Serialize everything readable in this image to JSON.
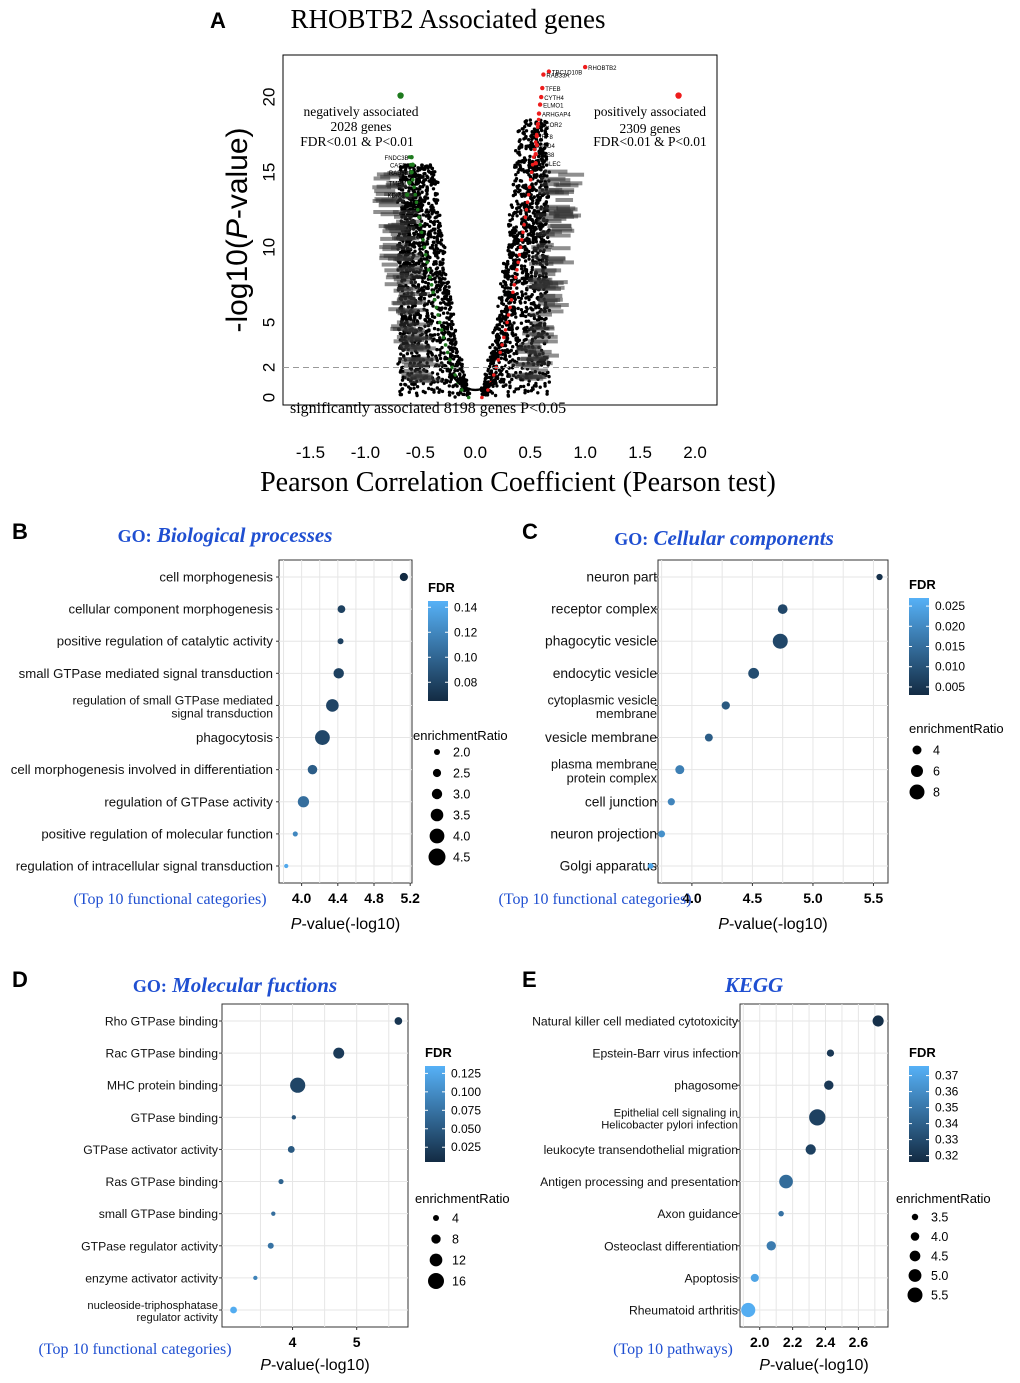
{
  "chart_data": [
    {
      "panel": "A",
      "type": "scatter",
      "title": "RHOBTB2 Associated genes",
      "xlabel": "Pearson Correlation Coefficient (Pearson test)",
      "ylabel_prefix": "-log10(",
      "ylabel_italic": "P",
      "ylabel_suffix": "-value)",
      "xlim": [
        -1.75,
        2.2
      ],
      "ylim": [
        -0.5,
        22.8
      ],
      "xticks": [
        -1.5,
        -1.0,
        -0.5,
        0.0,
        0.5,
        1.0,
        1.5,
        2.0
      ],
      "xtick_labels": [
        "-1.5",
        "-1.0",
        "-0.5",
        "0.0",
        "0.5",
        "1.0",
        "1.5",
        "2.0"
      ],
      "yticks": [
        0,
        2,
        5,
        10,
        15,
        20
      ],
      "ytick_labels": [
        "0",
        "2",
        "5",
        "10",
        "15",
        "20"
      ],
      "threshold_y": 2,
      "neg_legend": {
        "x": -0.68,
        "y": 20.1,
        "line1": "negatively  associated",
        "line2": "2028 genes",
        "line3": "FDR<0.01 & P<0.01"
      },
      "pos_legend": {
        "x": 1.85,
        "y": 20.1,
        "line1": "positively associated",
        "line2": "2309 genes",
        "line3": "FDR<0.01 & P<0.01"
      },
      "bottom_note": "significantly associated 8198 genes P<0.05",
      "labeled_points": [
        {
          "label": "RHOBTB2",
          "x": 1.0,
          "y": 22.0
        },
        {
          "label": "TBC1D10B",
          "x": 0.67,
          "y": 21.7
        },
        {
          "label": "RAB33A",
          "x": 0.62,
          "y": 21.5
        },
        {
          "label": "TFEB",
          "x": 0.61,
          "y": 20.6
        },
        {
          "label": "CYTH4",
          "x": 0.6,
          "y": 20.0
        },
        {
          "label": "ELMO1",
          "x": 0.59,
          "y": 19.5
        },
        {
          "label": "ARHGAP4",
          "x": 0.58,
          "y": 18.9
        },
        {
          "label": "NCOR2",
          "x": 0.57,
          "y": 18.2
        },
        {
          "label": "IRF8",
          "x": 0.56,
          "y": 17.4
        },
        {
          "label": "PLD4",
          "x": 0.56,
          "y": 16.8
        },
        {
          "label": "RAB8",
          "x": 0.55,
          "y": 16.2
        },
        {
          "label": "SIGLEC",
          "x": 0.55,
          "y": 15.6
        },
        {
          "label": "FNDC3B",
          "x": -0.58,
          "y": 16.0
        },
        {
          "label": "CASP8",
          "x": -0.57,
          "y": 15.5
        },
        {
          "label": "RAB5B",
          "x": -0.58,
          "y": 15.0
        },
        {
          "label": "TMEM",
          "x": -0.6,
          "y": 14.3
        },
        {
          "label": "KDM3",
          "x": -0.62,
          "y": 13.5
        }
      ]
    },
    {
      "panel": "B",
      "type": "scatter",
      "title_prefix": "GO:",
      "title": "Biological processes",
      "footnote": "(Top 10 functional categories)",
      "xlabel_italic": "P",
      "xlabel_rest": "-value(-log10)",
      "xlim": [
        3.75,
        5.22
      ],
      "xticks": [
        4.0,
        4.4,
        4.8,
        5.2
      ],
      "xtick_labels": [
        "4.0",
        "4.4",
        "4.8",
        "5.2"
      ],
      "categories": [
        "cell morphogenesis",
        "cellular component morphogenesis",
        "positive regulation of catalytic activity",
        "small GTPase mediated signal transduction",
        "regulation of small GTPase mediated signal transduction",
        "phagocytosis",
        "cell morphogenesis involved in differentiation",
        "regulation of GTPase activity",
        "positive regulation of molecular function",
        "regulation of intracellular signal transduction"
      ],
      "category_lines": [
        [
          "cell morphogenesis"
        ],
        [
          "cellular component morphogenesis"
        ],
        [
          "positive regulation of catalytic activity"
        ],
        [
          "small GTPase mediated signal transduction"
        ],
        [
          "regulation of small GTPase mediated",
          "signal transduction"
        ],
        [
          "phagocytosis"
        ],
        [
          "cell morphogenesis involved in differentiation"
        ],
        [
          "regulation of GTPase activity"
        ],
        [
          "positive regulation of molecular function"
        ],
        [
          "regulation of intracellular signal transduction"
        ]
      ],
      "x": [
        5.13,
        4.44,
        4.43,
        4.41,
        4.34,
        4.23,
        4.12,
        4.02,
        3.93,
        3.83
      ],
      "fdr": [
        0.065,
        0.078,
        0.078,
        0.078,
        0.08,
        0.082,
        0.095,
        0.105,
        0.12,
        0.14
      ],
      "enrichmentRatio": [
        2.5,
        2.4,
        2.0,
        3.0,
        3.5,
        4.0,
        2.8,
        3.2,
        1.8,
        1.6
      ],
      "fdr_legend": {
        "title": "FDR",
        "min": 0.065,
        "max": 0.145,
        "ticks": [
          0.14,
          0.12,
          0.1,
          0.08
        ],
        "labels": [
          "0.14",
          "0.12",
          "0.10",
          "0.08"
        ]
      },
      "size_legend": {
        "title": "enrichmentRatio",
        "values": [
          2.0,
          2.5,
          3.0,
          3.5,
          4.0,
          4.5
        ],
        "labels": [
          "2.0",
          "2.5",
          "3.0",
          "3.5",
          "4.0",
          "4.5"
        ]
      }
    },
    {
      "panel": "C",
      "type": "scatter",
      "title_prefix": "GO:",
      "title": "Cellular components",
      "footnote": "(Top 10 functional categories)",
      "xlabel_italic": "P",
      "xlabel_rest": "-value(-log10)",
      "xlim": [
        3.72,
        5.62
      ],
      "xticks": [
        4.0,
        4.5,
        5.0,
        5.5
      ],
      "xtick_labels": [
        "4.0",
        "4.5",
        "5.0",
        "5.5"
      ],
      "categories": [
        "neuron part",
        "receptor complex",
        "phagocytic vesicle",
        "endocytic vesicle",
        "cytoplasmic vesicle membrane",
        "vesicle membrane",
        "plasma membrane protein complex",
        "cell junction",
        "neuron projection",
        "Golgi apparatus"
      ],
      "category_lines": [
        [
          "neuron part"
        ],
        [
          "receptor complex"
        ],
        [
          "phagocytic vesicle"
        ],
        [
          "endocytic vesicle"
        ],
        [
          "cytoplasmic vesicle",
          "membrane"
        ],
        [
          "vesicle membrane"
        ],
        [
          "plasma membrane",
          "protein complex"
        ],
        [
          "cell junction"
        ],
        [
          "neuron projection"
        ],
        [
          "Golgi apparatus"
        ]
      ],
      "x": [
        5.55,
        4.75,
        4.73,
        4.51,
        4.28,
        4.14,
        3.9,
        3.83,
        3.75,
        3.66
      ],
      "fdr": [
        0.004,
        0.008,
        0.008,
        0.009,
        0.011,
        0.012,
        0.018,
        0.019,
        0.021,
        0.025
      ],
      "enrichmentRatio": [
        2.2,
        4.5,
        8.0,
        5.2,
        3.5,
        3.3,
        4.0,
        2.8,
        2.6,
        1.8
      ],
      "fdr_legend": {
        "title": "FDR",
        "min": 0.003,
        "max": 0.027,
        "ticks": [
          0.025,
          0.02,
          0.015,
          0.01,
          0.005
        ],
        "labels": [
          "0.025",
          "0.020",
          "0.015",
          "0.010",
          "0.005"
        ]
      },
      "size_legend": {
        "title": "enrichmentRatio",
        "values": [
          4,
          6,
          8
        ],
        "labels": [
          "4",
          "6",
          "8"
        ]
      }
    },
    {
      "panel": "D",
      "type": "scatter",
      "title_prefix": "GO:",
      "title": "Molecular fuctions",
      "footnote": "(Top 10 functional categories)",
      "xlabel_italic": "P",
      "xlabel_rest": "-value(-log10)",
      "xlim": [
        2.9,
        5.8
      ],
      "xticks": [
        4,
        5
      ],
      "xtick_labels": [
        "4",
        "5"
      ],
      "categories": [
        "Rho GTPase binding",
        "Rac GTPase binding",
        "MHC protein binding",
        "GTPase binding",
        "GTPase activator activity",
        "Ras GTPase binding",
        "small GTPase binding",
        "GTPase regulator activity",
        "enzyme activator activity",
        "nucleoside-triphosphatase regulator activity"
      ],
      "category_lines": [
        [
          "Rho GTPase binding"
        ],
        [
          "Rac GTPase binding"
        ],
        [
          "MHC protein binding"
        ],
        [
          "GTPase binding"
        ],
        [
          "GTPase activator activity"
        ],
        [
          "Ras GTPase binding"
        ],
        [
          "small GTPase binding"
        ],
        [
          "GTPase regulator activity"
        ],
        [
          "enzyme activator activity"
        ],
        [
          "nucleoside-triphosphatase",
          "regulator activity"
        ]
      ],
      "x": [
        5.65,
        4.72,
        4.08,
        4.02,
        3.98,
        3.82,
        3.7,
        3.66,
        3.42,
        3.08
      ],
      "fdr": [
        0.015,
        0.02,
        0.03,
        0.045,
        0.05,
        0.06,
        0.07,
        0.075,
        0.09,
        0.13
      ],
      "enrichmentRatio": [
        6,
        10,
        15,
        2,
        5,
        3,
        2,
        4,
        2,
        5
      ],
      "fdr_legend": {
        "title": "FDR",
        "min": 0.005,
        "max": 0.135,
        "ticks": [
          0.125,
          0.1,
          0.075,
          0.05,
          0.025
        ],
        "labels": [
          "0.125",
          "0.100",
          "0.075",
          "0.050",
          "0.025"
        ]
      },
      "size_legend": {
        "title": "enrichmentRatio",
        "values": [
          4,
          8,
          12,
          16
        ],
        "labels": [
          "4",
          "8",
          "12",
          "16"
        ]
      }
    },
    {
      "panel": "E",
      "type": "scatter",
      "title": "KEGG",
      "footnote": "(Top 10 pathways)",
      "xlabel_italic": "P",
      "xlabel_rest": "-value(-log10)",
      "xlim": [
        1.88,
        2.78
      ],
      "xticks": [
        2.0,
        2.2,
        2.4,
        2.6
      ],
      "xtick_labels": [
        "2.0",
        "2.2",
        "2.4",
        "2.6"
      ],
      "categories": [
        "Natural killer cell mediated cytotoxicity",
        "Epstein-Barr virus infection",
        "phagosome",
        "Epithelial cell signaling in Helicobacter pylori infection",
        "leukocyte transendothelial migration",
        "Antigen processing and presentation",
        "Axon guidance",
        "Osteoclast differentiation",
        "Apoptosis",
        "Rheumatoid arthritis"
      ],
      "category_lines": [
        [
          "Natural killer cell mediated cytotoxicity"
        ],
        [
          "Epstein-Barr virus infection"
        ],
        [
          "phagosome"
        ],
        [
          "Epithelial cell signaling in",
          "Helicobacter pylori infection"
        ],
        [
          "leukocyte transendothelial migration"
        ],
        [
          "Antigen processing and presentation"
        ],
        [
          "Axon guidance"
        ],
        [
          "Osteoclast differentiation"
        ],
        [
          "Apoptosis"
        ],
        [
          "Rheumatoid arthritis"
        ]
      ],
      "x": [
        2.72,
        2.43,
        2.42,
        2.35,
        2.31,
        2.16,
        2.13,
        2.07,
        1.97,
        1.93
      ],
      "fdr": [
        0.318,
        0.322,
        0.322,
        0.326,
        0.326,
        0.345,
        0.348,
        0.352,
        0.37,
        0.374
      ],
      "enrichmentRatio": [
        4.6,
        3.7,
        4.2,
        5.8,
        4.4,
        5.2,
        3.3,
        4.2,
        3.9,
        5.3
      ],
      "fdr_legend": {
        "title": "FDR",
        "min": 0.316,
        "max": 0.376,
        "ticks": [
          0.37,
          0.36,
          0.35,
          0.34,
          0.33,
          0.32
        ],
        "labels": [
          "0.37",
          "0.36",
          "0.35",
          "0.34",
          "0.33",
          "0.32"
        ]
      },
      "size_legend": {
        "title": "enrichmentRatio",
        "values": [
          3.5,
          4.0,
          4.5,
          5.0,
          5.5
        ],
        "labels": [
          "3.5",
          "4.0",
          "4.5",
          "5.0",
          "5.5"
        ]
      }
    }
  ],
  "colors": {
    "dark": "#132b43",
    "light": "#56b1f7",
    "title_blue": "#1f4fd1",
    "neg": "#1e7a1e",
    "pos": "#ee1c1c"
  }
}
